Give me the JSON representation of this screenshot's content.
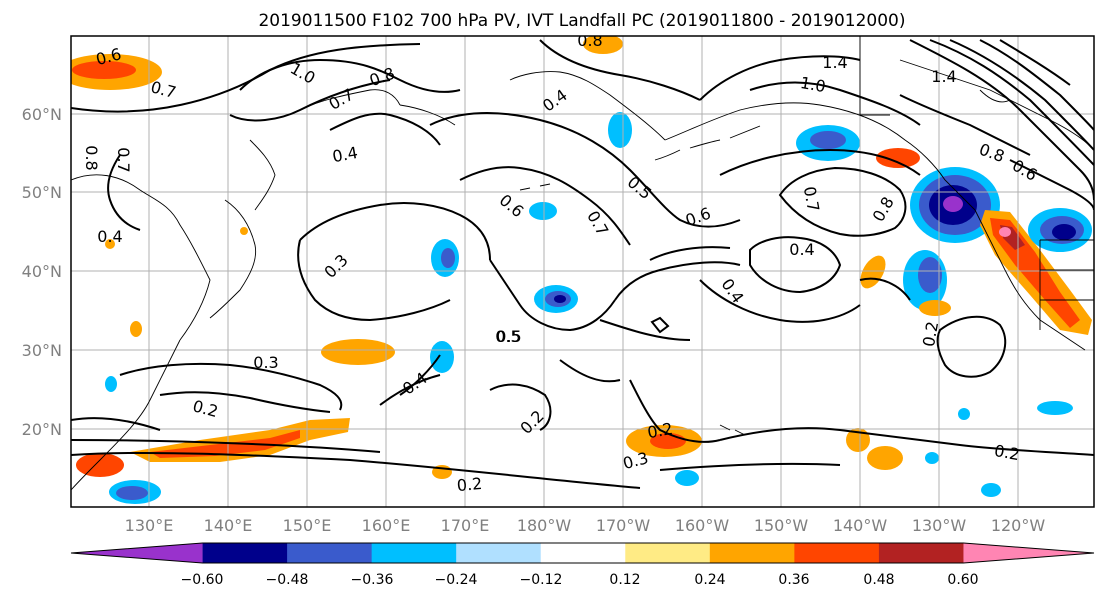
{
  "title": "2019011500 F102 700 hPa PV, IVT Landfall PC (2019011800 - 2019012000)",
  "chart_data": {
    "type": "map",
    "title": "2019011500 F102 700 hPa PV, IVT Landfall PC (2019011800 - 2019012000)",
    "xticks": [
      "130°E",
      "140°E",
      "150°E",
      "160°E",
      "170°E",
      "180°W",
      "170°W",
      "160°W",
      "150°W",
      "140°W",
      "130°W",
      "120°W"
    ],
    "yticks": [
      "20°N",
      "30°N",
      "40°N",
      "50°N",
      "60°N"
    ],
    "colorbar": {
      "ticks": [
        "−0.60",
        "−0.48",
        "−0.36",
        "−0.24",
        "−0.12",
        "0.12",
        "0.24",
        "0.36",
        "0.48",
        "0.60"
      ],
      "colors": [
        "#9932CC",
        "#00008B",
        "#3A5BCC",
        "#00BFFF",
        "#B0E0FF",
        "#FFFFFF",
        "#FFEB85",
        "#FFA500",
        "#FF4500",
        "#B22222",
        "#FF85B3"
      ]
    },
    "contour_labels": [
      "0.6",
      "0.7",
      "1.0",
      "0.8",
      "0.7",
      "0.4",
      "0.8",
      "1.4",
      "1.0",
      "1.4",
      "0.5",
      "0.7",
      "0.8",
      "0.6",
      "0.4",
      "0.6",
      "0.5",
      "0.6",
      "0.7",
      "0.8",
      "0.4",
      "0.4",
      "0.3",
      "0.5",
      "0.3",
      "0.4",
      "0.2",
      "0.2",
      "0.2",
      "0.3",
      "0.2",
      "0.2",
      "0.2",
      "0.8",
      "0.7",
      "0.4"
    ]
  }
}
